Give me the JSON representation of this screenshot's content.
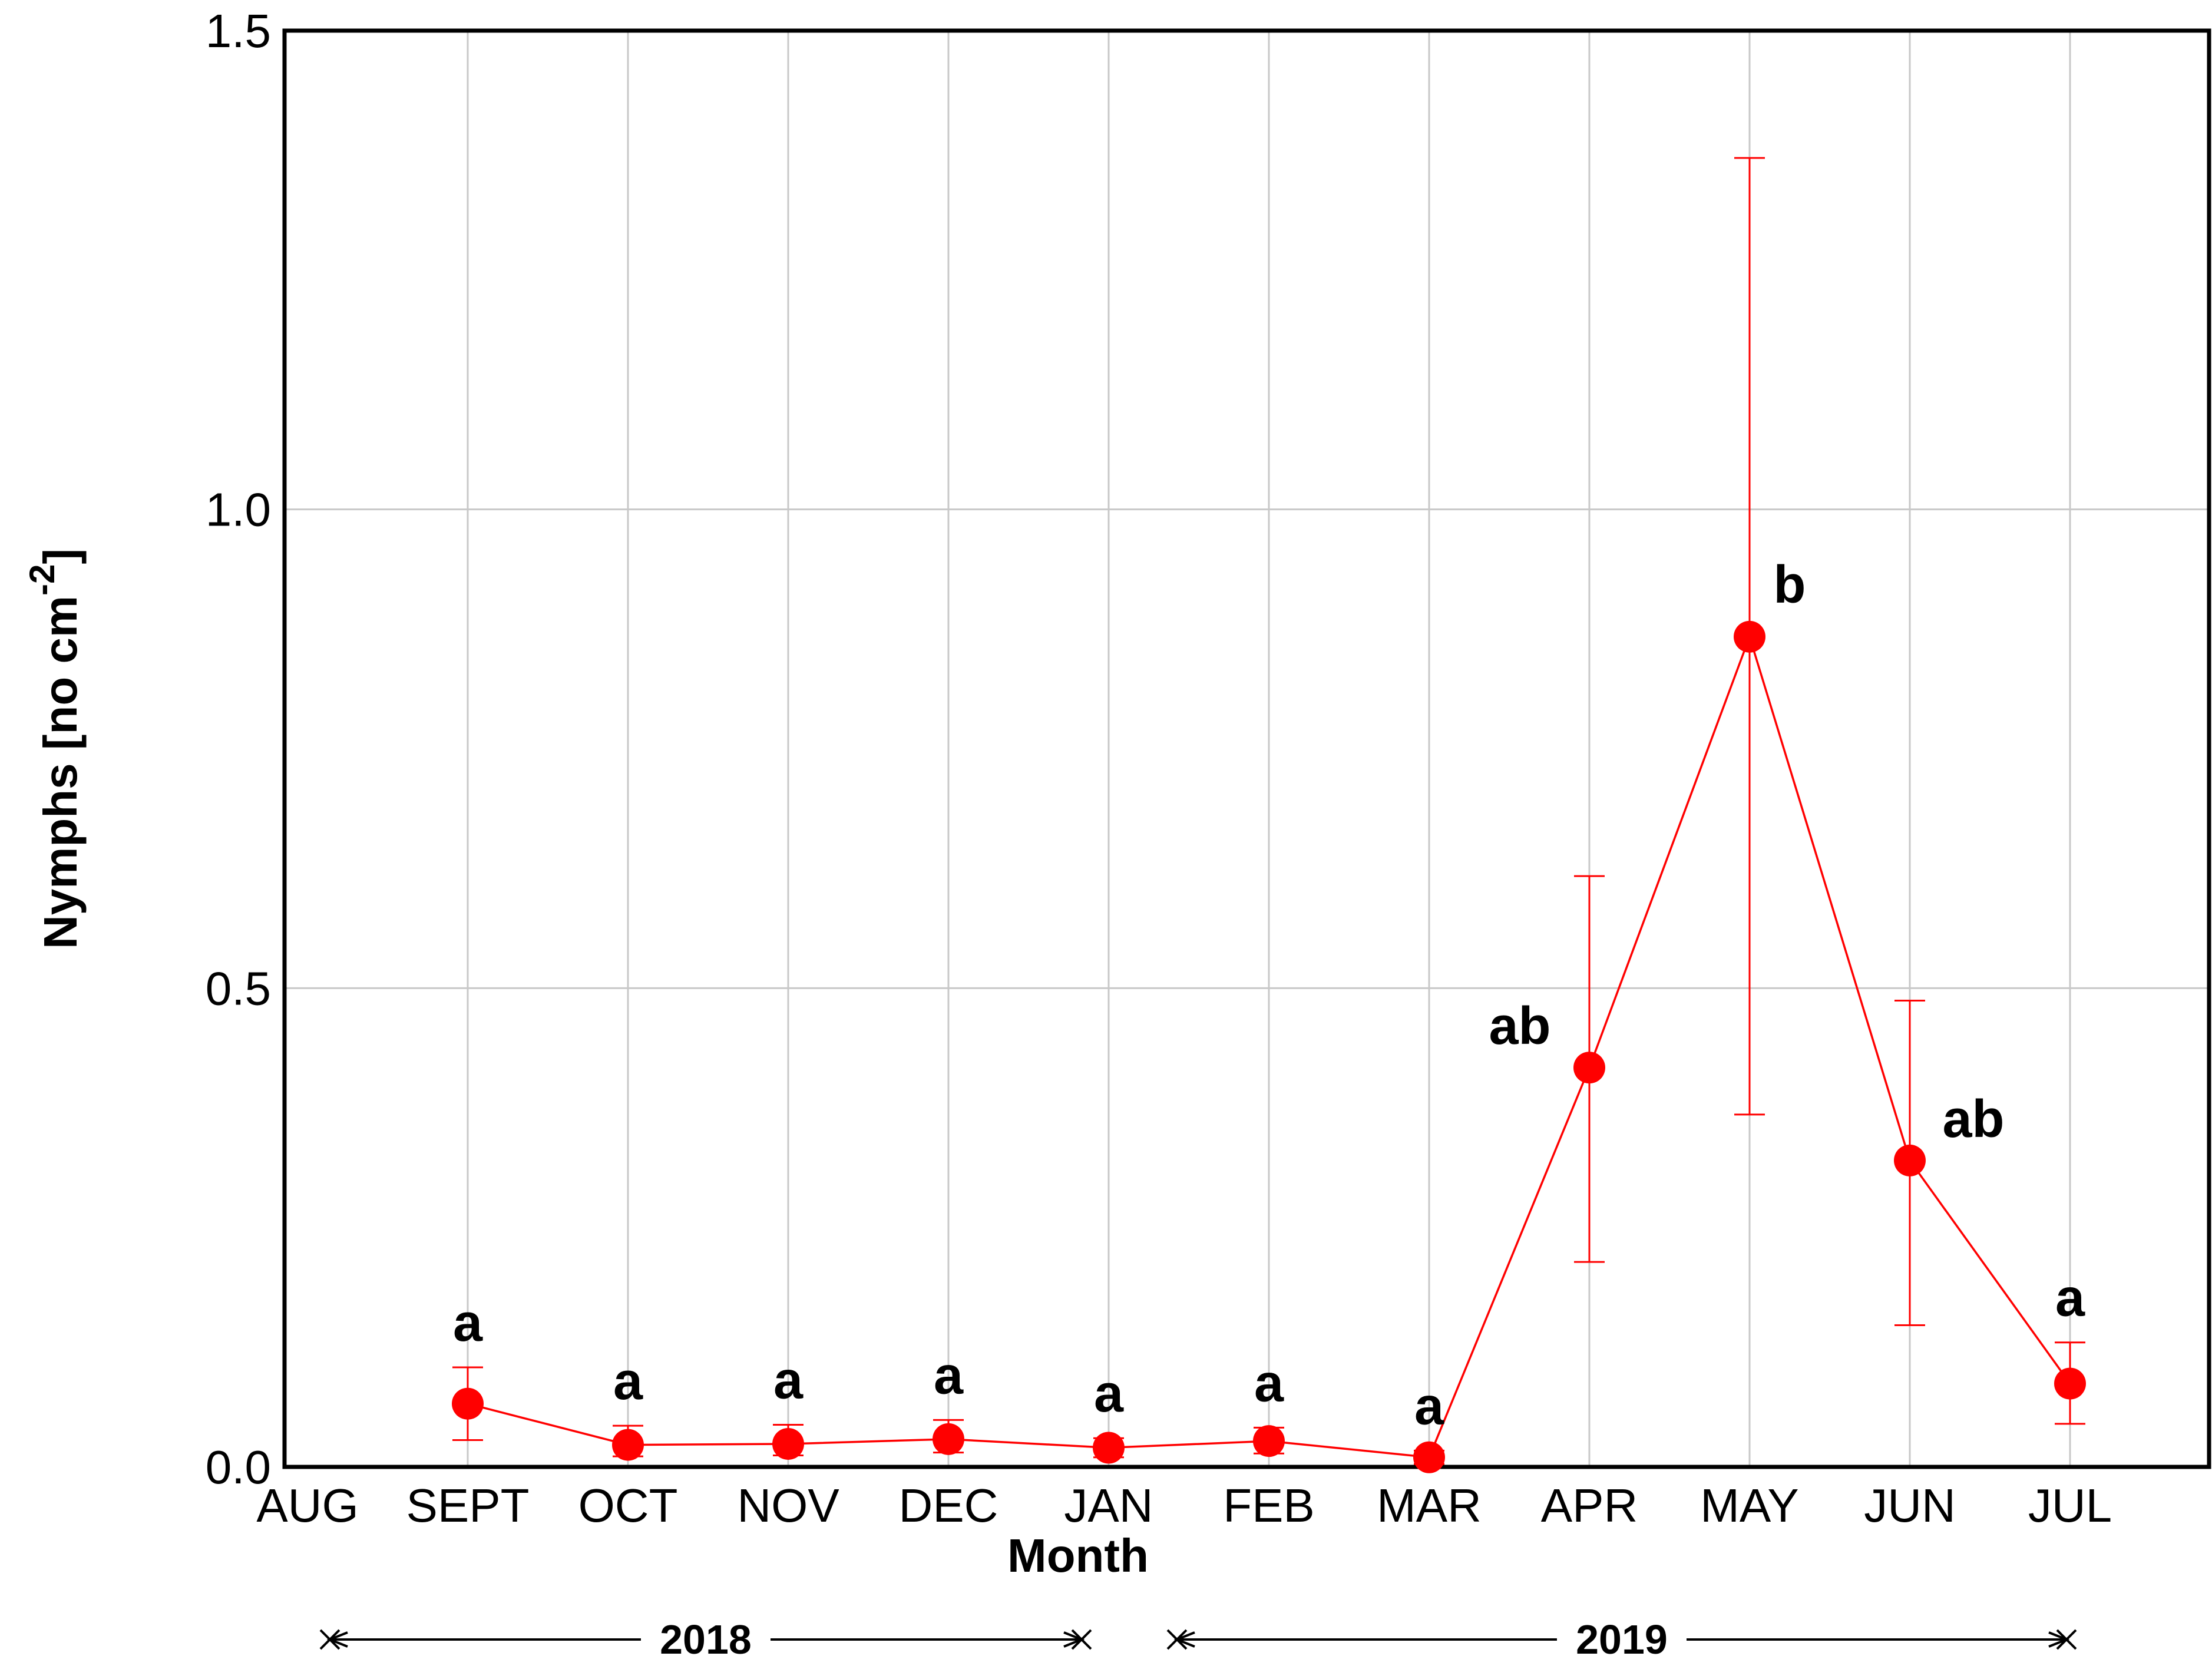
{
  "chart_data": {
    "type": "line",
    "xlabel": "Month",
    "ylabel": "Nymphs [no cm",
    "ylabel_superscript": "-2",
    "ylabel_suffix": "]",
    "categories": [
      "AUG",
      "SEPT",
      "OCT",
      "NOV",
      "DEC",
      "JAN",
      "FEB",
      "MAR",
      "APR",
      "MAY",
      "JUN",
      "JUL"
    ],
    "yticks": [
      "0.0",
      "0.5",
      "1.0",
      "1.5"
    ],
    "ylim": [
      0,
      1.5
    ],
    "grid": true,
    "series": [
      {
        "color": "#ff0000",
        "x": [
          "SEPT",
          "OCT",
          "NOV",
          "DEC",
          "JAN",
          "FEB",
          "MAR",
          "APR",
          "MAY",
          "JUN",
          "JUL"
        ],
        "values": [
          0.066,
          0.023,
          0.024,
          0.029,
          0.02,
          0.027,
          0.01,
          0.417,
          0.867,
          0.32,
          0.087
        ],
        "err_low": [
          0.028,
          0.011,
          0.012,
          0.015,
          0.01,
          0.014,
          0.003,
          0.214,
          0.368,
          0.148,
          0.045
        ],
        "err_high": [
          0.104,
          0.043,
          0.044,
          0.049,
          0.03,
          0.041,
          0.017,
          0.617,
          1.367,
          0.487,
          0.13
        ],
        "labels": [
          "a",
          "a",
          "a",
          "a",
          "a",
          "a",
          "a",
          "ab",
          "b",
          "ab",
          "a"
        ]
      }
    ],
    "years": [
      {
        "label": "2018",
        "from": "AUG",
        "to": "JAN"
      },
      {
        "label": "2019",
        "from": "JAN",
        "to": "JUL"
      }
    ]
  }
}
